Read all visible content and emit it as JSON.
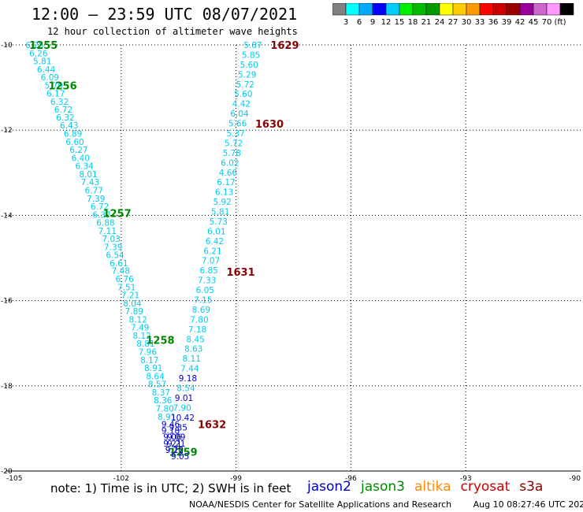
{
  "header": {
    "title": "12:00 – 23:59 UTC 08/07/2021",
    "subtitle": "12 hour collection of altimeter wave heights"
  },
  "scale": {
    "colors": [
      "#808080",
      "#00ffff",
      "#00aaff",
      "#0000ff",
      "#00ccff",
      "#00ee00",
      "#00bb00",
      "#009900",
      "#ffff00",
      "#ffcc00",
      "#ff9900",
      "#ff0000",
      "#cc0000",
      "#990000",
      "#990099",
      "#cc66cc",
      "#ff99ff",
      "#000000"
    ],
    "labels": [
      "3",
      "6",
      "9",
      "12",
      "15",
      "18",
      "21",
      "24",
      "27",
      "30",
      "33",
      "36",
      "39",
      "42",
      "45",
      "70",
      "(ft)"
    ]
  },
  "footer": {
    "note": "note:  1) Time is in UTC;  2) SWH is in feet",
    "satellites": [
      {
        "name": "jason2",
        "color": "#0000cc"
      },
      {
        "name": "jason3",
        "color": "#008800"
      },
      {
        "name": "altika",
        "color": "#ff8800"
      },
      {
        "name": "cryosat",
        "color": "#cc0000"
      },
      {
        "name": "s3a",
        "color": "#880000"
      }
    ],
    "credit": "NOAA/NESDIS Center for Satellite Applications and Research",
    "generated": "Aug 10 08:27:46 UTC 2021"
  },
  "chart_data": {
    "type": "scatter",
    "xlim": [
      -105,
      -90
    ],
    "ylim": [
      -20,
      -10
    ],
    "xticks": [
      -105,
      -102,
      -99,
      -96,
      -93,
      -90
    ],
    "yticks": [
      -10,
      -12,
      -14,
      -16,
      -18,
      -20
    ],
    "grid": true,
    "tracks": [
      {
        "time_labels": [
          {
            "text": "1255",
            "x": -104.4,
            "y": -10.0
          },
          {
            "text": "1256",
            "x": -103.9,
            "y": -10.95
          },
          {
            "text": "1257",
            "x": -102.48,
            "y": -13.95
          },
          {
            "text": "1258",
            "x": -101.35,
            "y": -16.92
          },
          {
            "text": "1259",
            "x": -100.75,
            "y": -19.55
          }
        ],
        "time_label_color": "#008800",
        "points": [
          {
            "x": -104.5,
            "y": -10.0,
            "v": 6.25
          },
          {
            "x": -104.4,
            "y": -10.19,
            "v": 6.26
          },
          {
            "x": -104.3,
            "y": -10.38,
            "v": 5.81
          },
          {
            "x": -104.2,
            "y": -10.57,
            "v": 6.44
          },
          {
            "x": -104.1,
            "y": -10.76,
            "v": 6.09
          },
          {
            "x": -104.0,
            "y": -10.95,
            "v": 5.79
          },
          {
            "x": -103.95,
            "y": -11.14,
            "v": 6.17
          },
          {
            "x": -103.85,
            "y": -11.33,
            "v": 6.32
          },
          {
            "x": -103.75,
            "y": -11.52,
            "v": 6.72
          },
          {
            "x": -103.7,
            "y": -11.7,
            "v": 6.32
          },
          {
            "x": -103.6,
            "y": -11.89,
            "v": 6.43
          },
          {
            "x": -103.5,
            "y": -12.08,
            "v": 6.89
          },
          {
            "x": -103.45,
            "y": -12.27,
            "v": 6.6
          },
          {
            "x": -103.35,
            "y": -12.46,
            "v": 6.27
          },
          {
            "x": -103.3,
            "y": -12.65,
            "v": 6.4
          },
          {
            "x": -103.2,
            "y": -12.84,
            "v": 6.34
          },
          {
            "x": -103.1,
            "y": -13.03,
            "v": 8.01
          },
          {
            "x": -103.05,
            "y": -13.22,
            "v": 7.43
          },
          {
            "x": -102.95,
            "y": -13.41,
            "v": 6.77
          },
          {
            "x": -102.9,
            "y": -13.6,
            "v": 7.39
          },
          {
            "x": -102.8,
            "y": -13.79,
            "v": 6.72
          },
          {
            "x": -102.75,
            "y": -13.98,
            "v": 6.37
          },
          {
            "x": -102.65,
            "y": -14.17,
            "v": 6.88
          },
          {
            "x": -102.6,
            "y": -14.36,
            "v": 7.11
          },
          {
            "x": -102.5,
            "y": -14.55,
            "v": 7.03
          },
          {
            "x": -102.45,
            "y": -14.74,
            "v": 7.39
          },
          {
            "x": -102.4,
            "y": -14.93,
            "v": 6.54
          },
          {
            "x": -102.3,
            "y": -15.12,
            "v": 6.61
          },
          {
            "x": -102.25,
            "y": -15.3,
            "v": 7.48
          },
          {
            "x": -102.15,
            "y": -15.49,
            "v": 6.76
          },
          {
            "x": -102.1,
            "y": -15.68,
            "v": 7.51
          },
          {
            "x": -102.0,
            "y": -15.87,
            "v": 7.21
          },
          {
            "x": -101.95,
            "y": -16.06,
            "v": 8.04
          },
          {
            "x": -101.9,
            "y": -16.25,
            "v": 7.89
          },
          {
            "x": -101.8,
            "y": -16.44,
            "v": 8.12
          },
          {
            "x": -101.75,
            "y": -16.63,
            "v": 7.49
          },
          {
            "x": -101.7,
            "y": -16.82,
            "v": 8.12
          },
          {
            "x": -101.6,
            "y": -17.01,
            "v": 8.81
          },
          {
            "x": -101.55,
            "y": -17.2,
            "v": 7.96
          },
          {
            "x": -101.5,
            "y": -17.39,
            "v": 8.17
          },
          {
            "x": -101.4,
            "y": -17.58,
            "v": 8.91
          },
          {
            "x": -101.35,
            "y": -17.77,
            "v": 8.64
          },
          {
            "x": -101.3,
            "y": -17.96,
            "v": 8.57
          },
          {
            "x": -101.2,
            "y": -18.15,
            "v": 8.37
          },
          {
            "x": -101.15,
            "y": -18.34,
            "v": 8.36
          },
          {
            "x": -101.1,
            "y": -18.53,
            "v": 7.8
          },
          {
            "x": -101.05,
            "y": -18.72,
            "v": 8.91
          },
          {
            "x": -100.95,
            "y": -18.9,
            "v": 9.46
          },
          {
            "x": -100.95,
            "y": -19.05,
            "v": 9.18
          },
          {
            "x": -100.9,
            "y": -19.2,
            "v": 9.06
          },
          {
            "x": -100.9,
            "y": -19.35,
            "v": 9.21
          },
          {
            "x": -100.85,
            "y": -19.5,
            "v": 9.12
          }
        ]
      },
      {
        "time_labels": [
          {
            "text": "1629",
            "x": -98.1,
            "y": -10.0
          },
          {
            "text": "1630",
            "x": -98.5,
            "y": -11.85
          },
          {
            "text": "1631",
            "x": -99.25,
            "y": -15.32
          },
          {
            "text": "1632",
            "x": -100.0,
            "y": -18.9
          }
        ],
        "time_label_color": "#880000",
        "points": [
          {
            "x": -98.8,
            "y": -10.0,
            "v": 5.87
          },
          {
            "x": -98.85,
            "y": -10.23,
            "v": 5.85
          },
          {
            "x": -98.9,
            "y": -10.46,
            "v": 5.6
          },
          {
            "x": -98.95,
            "y": -10.69,
            "v": 5.29
          },
          {
            "x": -99.0,
            "y": -10.92,
            "v": 5.72
          },
          {
            "x": -99.05,
            "y": -11.15,
            "v": 5.6
          },
          {
            "x": -99.1,
            "y": -11.38,
            "v": 4.42
          },
          {
            "x": -99.15,
            "y": -11.61,
            "v": 6.04
          },
          {
            "x": -99.2,
            "y": -11.84,
            "v": 5.66
          },
          {
            "x": -99.25,
            "y": -12.07,
            "v": 5.37
          },
          {
            "x": -99.3,
            "y": -12.3,
            "v": 5.72
          },
          {
            "x": -99.35,
            "y": -12.53,
            "v": 5.78
          },
          {
            "x": -99.4,
            "y": -12.76,
            "v": 6.02
          },
          {
            "x": -99.45,
            "y": -12.99,
            "v": 4.66
          },
          {
            "x": -99.5,
            "y": -13.22,
            "v": 6.17
          },
          {
            "x": -99.55,
            "y": -13.45,
            "v": 6.13
          },
          {
            "x": -99.6,
            "y": -13.68,
            "v": 5.92
          },
          {
            "x": -99.65,
            "y": -13.91,
            "v": 5.81
          },
          {
            "x": -99.7,
            "y": -14.14,
            "v": 5.73
          },
          {
            "x": -99.75,
            "y": -14.37,
            "v": 6.01
          },
          {
            "x": -99.8,
            "y": -14.6,
            "v": 6.42
          },
          {
            "x": -99.85,
            "y": -14.83,
            "v": 6.21
          },
          {
            "x": -99.9,
            "y": -15.06,
            "v": 7.07
          },
          {
            "x": -99.95,
            "y": -15.29,
            "v": 6.85
          },
          {
            "x": -100.0,
            "y": -15.52,
            "v": 7.33
          },
          {
            "x": -100.05,
            "y": -15.75,
            "v": 6.05
          },
          {
            "x": -100.1,
            "y": -15.98,
            "v": 7.15
          },
          {
            "x": -100.15,
            "y": -16.21,
            "v": 8.69
          },
          {
            "x": -100.2,
            "y": -16.44,
            "v": 7.8
          },
          {
            "x": -100.25,
            "y": -16.67,
            "v": 7.18
          },
          {
            "x": -100.3,
            "y": -16.9,
            "v": 8.45
          },
          {
            "x": -100.35,
            "y": -17.13,
            "v": 8.63
          },
          {
            "x": -100.4,
            "y": -17.36,
            "v": 8.11
          },
          {
            "x": -100.45,
            "y": -17.59,
            "v": 7.44
          },
          {
            "x": -100.5,
            "y": -17.82,
            "v": 9.18
          },
          {
            "x": -100.55,
            "y": -18.05,
            "v": 8.54
          },
          {
            "x": -100.6,
            "y": -18.28,
            "v": 9.01
          },
          {
            "x": -100.65,
            "y": -18.51,
            "v": 7.9
          },
          {
            "x": -100.7,
            "y": -18.74,
            "v": 10.42
          },
          {
            "x": -100.75,
            "y": -18.97,
            "v": 9.35
          },
          {
            "x": -100.8,
            "y": -19.2,
            "v": 9.09
          },
          {
            "x": -100.8,
            "y": -19.35,
            "v": 9.21
          },
          {
            "x": -100.85,
            "y": -19.5,
            "v": 9.2
          },
          {
            "x": -100.7,
            "y": -19.65,
            "v": 9.05
          }
        ]
      }
    ]
  }
}
